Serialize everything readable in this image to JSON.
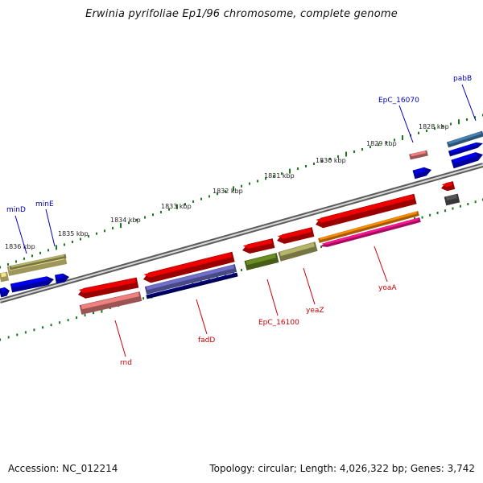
{
  "title": "Erwinia pyrifoliae Ep1/96 chromosome, complete genome",
  "footer": {
    "accession": "Accession: NC_012214",
    "topology": "Topology: circular; Length: 4,026,322 bp; Genes: 3,742"
  },
  "colors": {
    "backbone": "#8a8a8a",
    "tick": "#1a7a1a",
    "label_forward": "#0000bb",
    "label_reverse": "#cc0000",
    "leader_forward": "#0000bb",
    "leader_reverse": "#cc0000"
  },
  "kbp_labels": [
    "1828 kbp",
    "1829 kbp",
    "1830 kbp",
    "1831 kbp",
    "1832 kbp",
    "1833 kbp",
    "1834 kbp",
    "1835 kbp",
    "1836 kbp"
  ],
  "genes": [
    {
      "label": "pabB",
      "strand": "forward",
      "color": "#0000ee"
    },
    {
      "label": "EpC_16070",
      "strand": "forward",
      "color": "#f08080"
    },
    {
      "label": "minE",
      "strand": "forward",
      "color": "#0000ee"
    },
    {
      "label": "minD",
      "strand": "forward",
      "color": "#0000ee"
    },
    {
      "label": "yoaA",
      "strand": "reverse",
      "color": "#ff1493"
    },
    {
      "label": "yeaZ",
      "strand": "reverse",
      "color": "#b5b56a"
    },
    {
      "label": "EpC_16100",
      "strand": "reverse",
      "color": "#6b8e23"
    },
    {
      "label": "fadD",
      "strand": "reverse",
      "color": "#7070cc"
    },
    {
      "label": "rnd",
      "strand": "reverse",
      "color": "#ee0000"
    }
  ]
}
